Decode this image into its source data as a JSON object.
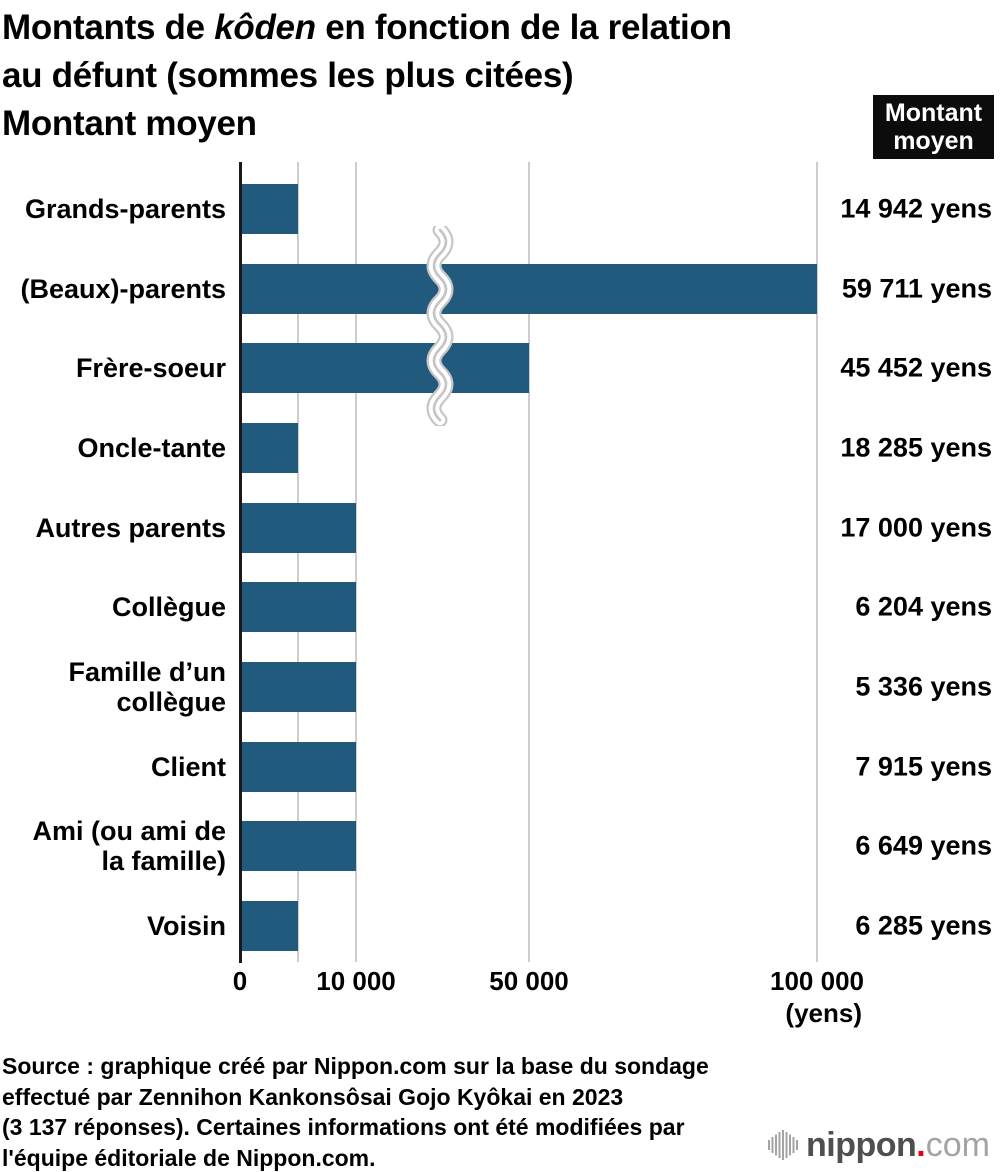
{
  "title": {
    "line1_pre": "Montants de ",
    "line1_italic": "kôden",
    "line1_post": " en fonction de la relation",
    "line2": "au défunt (sommes les plus citées)",
    "line3": "Montant moyen"
  },
  "badge": {
    "line1": "Montant",
    "line2": "moyen"
  },
  "chart_data": {
    "type": "bar",
    "orientation": "horizontal",
    "bar_color": "#215a7c",
    "gridline_color": "#cdcdcd",
    "broken_scale": true,
    "rows": [
      {
        "label": "Grands-parents",
        "bar_value": 5000,
        "amount_label": "14 942 yens"
      },
      {
        "label": "(Beaux)-parents",
        "bar_value": 100000,
        "amount_label": "59 711 yens"
      },
      {
        "label": "Frère-soeur",
        "bar_value": 50000,
        "amount_label": "45 452 yens"
      },
      {
        "label": "Oncle-tante",
        "bar_value": 5000,
        "amount_label": "18 285 yens"
      },
      {
        "label": "Autres parents",
        "bar_value": 10000,
        "amount_label": "17 000 yens"
      },
      {
        "label": "Collègue",
        "bar_value": 10000,
        "amount_label": "6 204 yens"
      },
      {
        "label": "Famille d’un\ncollègue",
        "bar_value": 10000,
        "amount_label": "5 336 yens"
      },
      {
        "label": "Client",
        "bar_value": 10000,
        "amount_label": "7 915 yens"
      },
      {
        "label": "Ami (ou ami de\nla famille)",
        "bar_value": 10000,
        "amount_label": "6 649 yens"
      },
      {
        "label": "Voisin",
        "bar_value": 5000,
        "amount_label": "6 285 yens"
      }
    ],
    "axis": {
      "ticks": [
        {
          "value": 0,
          "label": "0"
        },
        {
          "value": 10000,
          "label": "10 000"
        },
        {
          "value": 50000,
          "label": "50 000"
        },
        {
          "value": 100000,
          "label": "100 000"
        }
      ],
      "unit_label": "(yens)",
      "gridline_values": [
        5000,
        10000,
        50000,
        100000
      ],
      "scale_anchors": [
        [
          0,
          0
        ],
        [
          5000,
          58
        ],
        [
          10000,
          116
        ],
        [
          50000,
          289
        ],
        [
          100000,
          577
        ]
      ]
    }
  },
  "source": {
    "lines": [
      "Source : graphique créé par Nippon.com sur la base du sondage",
      "effectué par Zennihon Kankonsôsai Gojo Kyôkai en 2023",
      "(3 137 réponses). Certaines informations ont été modifiées par",
      "l'équipe éditoriale de Nippon.com."
    ]
  },
  "logo": {
    "name": "nippon.com",
    "text_main": "nippon",
    "text_dot": ".",
    "text_suffix": "com",
    "colors": {
      "main": "#4f4f4f",
      "dot": "#e60012",
      "suffix": "#a3a3a3",
      "icon": "#a3a3a3"
    }
  }
}
